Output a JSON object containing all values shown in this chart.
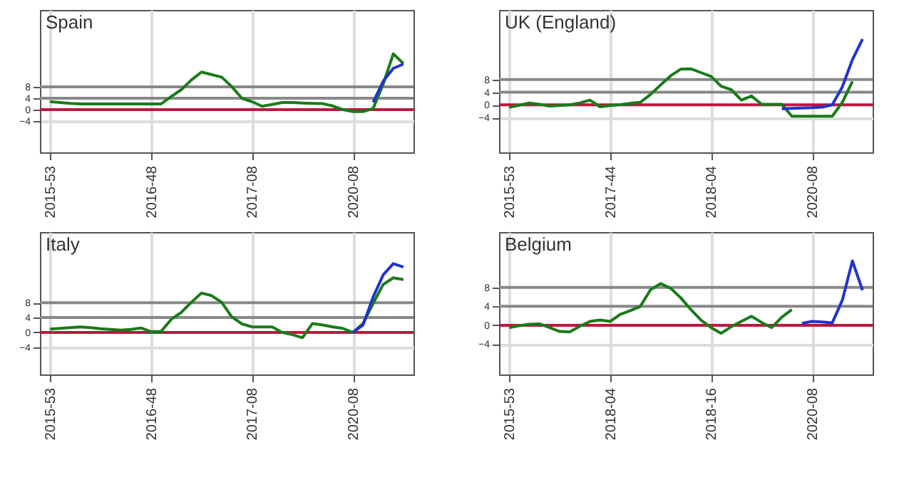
{
  "chart_data": [
    {
      "type": "line",
      "title": "Spain",
      "categories": [
        "2015-53",
        null,
        null,
        null,
        null,
        null,
        null,
        null,
        null,
        null,
        "2016-48",
        null,
        null,
        null,
        null,
        null,
        null,
        null,
        null,
        null,
        "2017-08",
        null,
        null,
        null,
        null,
        null,
        null,
        null,
        null,
        null,
        "2020-08",
        null,
        null,
        null,
        null,
        null
      ],
      "ylim": [
        -15,
        35
      ],
      "yticks": [
        -4,
        0,
        4,
        8
      ],
      "grid": true,
      "marker": "none",
      "line_style": "solid",
      "ref_lines": [
        {
          "axis": "y",
          "value": 0,
          "color": "#c0143c"
        },
        {
          "axis": "y",
          "value": 4,
          "color": "#888888"
        },
        {
          "axis": "y",
          "value": 8,
          "color": "#888888"
        }
      ],
      "series": [
        {
          "color": "#1a7a1a",
          "values": [
            2.8,
            2.5,
            2.2,
            2,
            2,
            2,
            2,
            2,
            2,
            2,
            2,
            2,
            4.6,
            7,
            10.4,
            13.2,
            12.3,
            11.4,
            8.1,
            4,
            2.8,
            1.2,
            1.8,
            2.5,
            2.5,
            2.3,
            2.2,
            2.1,
            1.3,
            0,
            -0.7,
            -0.7,
            0.4,
            9,
            19.6,
            16.2
          ]
        },
        {
          "color": "#2233cc",
          "values": [
            null,
            null,
            null,
            null,
            null,
            null,
            null,
            null,
            null,
            null,
            null,
            null,
            null,
            null,
            null,
            null,
            null,
            null,
            null,
            null,
            null,
            null,
            null,
            null,
            null,
            null,
            null,
            null,
            null,
            null,
            null,
            null,
            2.6,
            10,
            14.5,
            16
          ]
        }
      ]
    },
    {
      "type": "line",
      "title": "UK (England)",
      "categories": [
        "2015-53",
        null,
        null,
        null,
        null,
        null,
        null,
        null,
        null,
        null,
        "2017-44",
        null,
        null,
        null,
        null,
        null,
        null,
        null,
        null,
        null,
        "2018-04",
        null,
        null,
        null,
        null,
        null,
        null,
        null,
        null,
        null,
        "2020-08",
        null,
        null,
        null,
        null,
        null
      ],
      "ylim": [
        -15,
        30
      ],
      "yticks": [
        -4,
        0,
        4,
        8
      ],
      "grid": true,
      "marker": "none",
      "line_style": "solid",
      "ref_lines": [
        {
          "axis": "y",
          "value": 0,
          "color": "#c0143c"
        },
        {
          "axis": "y",
          "value": 4,
          "color": "#888888"
        },
        {
          "axis": "y",
          "value": 8,
          "color": "#888888"
        }
      ],
      "series": [
        {
          "color": "#1a7a1a",
          "values": [
            -0.8,
            -0.1,
            0.6,
            0.2,
            -0.4,
            -0.2,
            0,
            0.6,
            1.5,
            -0.6,
            -0.2,
            0.1,
            0.5,
            0.8,
            3.3,
            6.3,
            9.2,
            11.3,
            11.4,
            10.2,
            9,
            5.9,
            4.8,
            1.5,
            2.8,
            0.2,
            0.2,
            0.2,
            -3.6,
            -3.6,
            -3.6,
            -3.6,
            -3.6,
            0.8,
            7.4,
            null
          ]
        },
        {
          "color": "#2233cc",
          "values": [
            null,
            null,
            null,
            null,
            null,
            null,
            null,
            null,
            null,
            null,
            null,
            null,
            null,
            null,
            null,
            null,
            null,
            null,
            null,
            null,
            null,
            null,
            null,
            null,
            null,
            null,
            null,
            -1.2,
            -1.1,
            -1,
            -0.9,
            -0.7,
            0,
            5.7,
            14.3,
            20.8
          ]
        }
      ]
    },
    {
      "type": "line",
      "title": "Italy",
      "categories": [
        "2015-53",
        null,
        null,
        null,
        null,
        null,
        null,
        null,
        null,
        null,
        "2016-48",
        null,
        null,
        null,
        null,
        null,
        null,
        null,
        null,
        null,
        "2017-08",
        null,
        null,
        null,
        null,
        null,
        null,
        null,
        null,
        null,
        "2020-08",
        null,
        null,
        null,
        null,
        null
      ],
      "ylim": [
        -11.3,
        27
      ],
      "yticks": [
        -4,
        0,
        4,
        8
      ],
      "grid": true,
      "marker": "none",
      "line_style": "solid",
      "ref_lines": [
        {
          "axis": "y",
          "value": 0,
          "color": "#c0143c"
        },
        {
          "axis": "y",
          "value": 4,
          "color": "#888888"
        },
        {
          "axis": "y",
          "value": 8,
          "color": "#888888"
        }
      ],
      "series": [
        {
          "color": "#1a7a1a",
          "values": [
            0.9,
            1.1,
            1.3,
            1.5,
            1.3,
            1,
            0.8,
            0.6,
            0.8,
            1.2,
            0.2,
            0.3,
            3.5,
            5.4,
            8.1,
            10.6,
            9.9,
            8.1,
            4.2,
            2.3,
            1.5,
            1.5,
            1.5,
            0,
            -0.6,
            -1.4,
            2.4,
            2,
            1.5,
            1.1,
            0,
            2.4,
            7.8,
            12.9,
            14.7,
            14.2
          ]
        },
        {
          "color": "#2233cc",
          "values": [
            null,
            null,
            null,
            null,
            null,
            null,
            null,
            null,
            null,
            null,
            null,
            null,
            null,
            null,
            null,
            null,
            null,
            null,
            null,
            null,
            null,
            null,
            null,
            null,
            null,
            null,
            null,
            null,
            null,
            null,
            0,
            2,
            9.5,
            15.5,
            18.5,
            17.6
          ]
        }
      ]
    },
    {
      "type": "line",
      "title": "Belgium",
      "categories": [
        "2015-53",
        null,
        null,
        null,
        null,
        null,
        null,
        null,
        null,
        null,
        "2018-04",
        null,
        null,
        null,
        null,
        null,
        null,
        null,
        null,
        null,
        "2018-16",
        null,
        null,
        null,
        null,
        null,
        null,
        null,
        null,
        null,
        "2020-08",
        null,
        null,
        null,
        null,
        null
      ],
      "ylim": [
        -10.4,
        19.7
      ],
      "yticks": [
        -4,
        0,
        4,
        8
      ],
      "grid": true,
      "marker": "none",
      "line_style": "solid",
      "ref_lines": [
        {
          "axis": "y",
          "value": 0,
          "color": "#c0143c"
        },
        {
          "axis": "y",
          "value": 4,
          "color": "#888888"
        },
        {
          "axis": "y",
          "value": 8,
          "color": "#888888"
        }
      ],
      "series": [
        {
          "color": "#1a7a1a",
          "values": [
            -0.5,
            -0.1,
            0.2,
            0.3,
            -0.5,
            -1.3,
            -1.4,
            -0.2,
            0.8,
            1.1,
            0.8,
            2.3,
            3.1,
            4,
            7.5,
            8.8,
            7.8,
            5.8,
            3.3,
            1.1,
            -0.5,
            -1.7,
            -0.3,
            0.8,
            1.9,
            0.6,
            -0.5,
            1.7,
            3.3,
            null,
            null,
            null,
            null,
            null,
            null,
            null
          ]
        },
        {
          "color": "#2233cc",
          "values": [
            null,
            null,
            null,
            null,
            null,
            null,
            null,
            null,
            null,
            null,
            null,
            null,
            null,
            null,
            null,
            null,
            null,
            null,
            null,
            null,
            null,
            null,
            null,
            null,
            null,
            null,
            null,
            null,
            null,
            0.4,
            0.8,
            0.7,
            0.5,
            5.3,
            13.6,
            7.4
          ]
        }
      ]
    }
  ]
}
